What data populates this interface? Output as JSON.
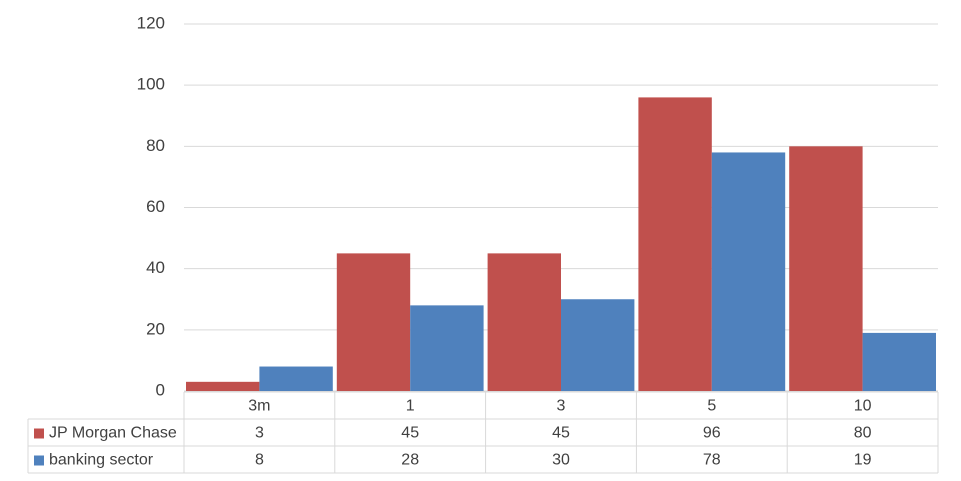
{
  "chart_data": {
    "type": "bar",
    "categories": [
      "3m",
      "1",
      "3",
      "5",
      "10"
    ],
    "series": [
      {
        "name": "JP Morgan Chase",
        "color": "#c0504d",
        "values": [
          3,
          45,
          45,
          96,
          80
        ]
      },
      {
        "name": "banking sector",
        "color": "#4f81bd",
        "values": [
          8,
          28,
          30,
          78,
          19
        ]
      }
    ],
    "ylim": [
      0,
      120
    ],
    "yticks": [
      0,
      20,
      40,
      60,
      80,
      100,
      120
    ],
    "grid": true
  }
}
